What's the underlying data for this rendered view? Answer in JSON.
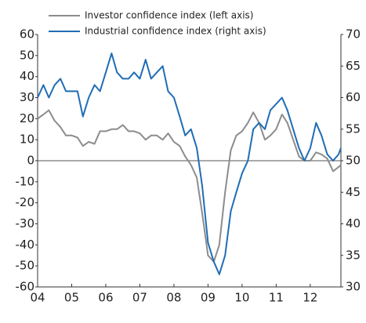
{
  "chart_data": {
    "type": "line",
    "x": [
      2004,
      2004.17,
      2004.33,
      2004.5,
      2004.67,
      2004.83,
      2005,
      2005.17,
      2005.33,
      2005.5,
      2005.67,
      2005.83,
      2006,
      2006.17,
      2006.33,
      2006.5,
      2006.67,
      2006.83,
      2007,
      2007.17,
      2007.33,
      2007.5,
      2007.67,
      2007.83,
      2008,
      2008.17,
      2008.33,
      2008.5,
      2008.67,
      2008.83,
      2009,
      2009.17,
      2009.33,
      2009.5,
      2009.67,
      2009.83,
      2010,
      2010.17,
      2010.33,
      2010.5,
      2010.67,
      2010.83,
      2011,
      2011.17,
      2011.33,
      2011.5,
      2011.67,
      2011.83,
      2012,
      2012.17,
      2012.33,
      2012.5,
      2012.67,
      2012.83,
      2012.9
    ],
    "series": [
      {
        "name": "Investor confidence index (left axis)",
        "color": "#8c8c8c",
        "values": [
          20,
          22,
          24,
          19,
          16,
          12,
          12,
          11,
          7,
          9,
          8,
          14,
          14,
          15,
          15,
          17,
          14,
          14,
          13,
          10,
          12,
          12,
          10,
          13,
          9,
          7,
          2,
          -2,
          -8,
          -25,
          -45,
          -48,
          -40,
          -15,
          5,
          12,
          14,
          18,
          23,
          18,
          10,
          12,
          15,
          22,
          18,
          10,
          2,
          0,
          0,
          4,
          3,
          1,
          -5,
          -3,
          -2
        ]
      },
      {
        "name": "Industrial confidence index (right axis)",
        "color": "#1f6db5",
        "axis": "y2",
        "values": [
          60,
          62,
          60,
          62,
          63,
          61,
          61,
          61,
          57,
          60,
          62,
          61,
          64,
          67,
          64,
          63,
          63,
          64,
          63,
          66,
          63,
          64,
          65,
          61,
          60,
          57,
          54,
          55,
          52,
          46,
          37,
          34,
          32,
          35,
          42,
          45,
          48,
          50,
          55,
          56,
          55,
          58,
          59,
          60,
          58,
          55,
          52,
          50,
          52,
          56,
          54,
          51,
          50,
          51,
          52
        ]
      }
    ],
    "xlim": [
      2004,
      2012.9
    ],
    "xticks": [
      {
        "value": 2004,
        "label": "04"
      },
      {
        "value": 2005,
        "label": "05"
      },
      {
        "value": 2006,
        "label": "06"
      },
      {
        "value": 2007,
        "label": "07"
      },
      {
        "value": 2008,
        "label": "08"
      },
      {
        "value": 2009,
        "label": "09"
      },
      {
        "value": 2010,
        "label": "10"
      },
      {
        "value": 2011,
        "label": "11"
      },
      {
        "value": 2012,
        "label": "12"
      }
    ],
    "ylim": [
      -60,
      60
    ],
    "yticks": [
      -60,
      -50,
      -40,
      -30,
      -20,
      -10,
      0,
      10,
      20,
      30,
      40,
      50,
      60
    ],
    "y2lim": [
      30,
      70
    ],
    "y2ticks": [
      30,
      35,
      40,
      45,
      50,
      55,
      60,
      65,
      70
    ],
    "legend": "top"
  }
}
